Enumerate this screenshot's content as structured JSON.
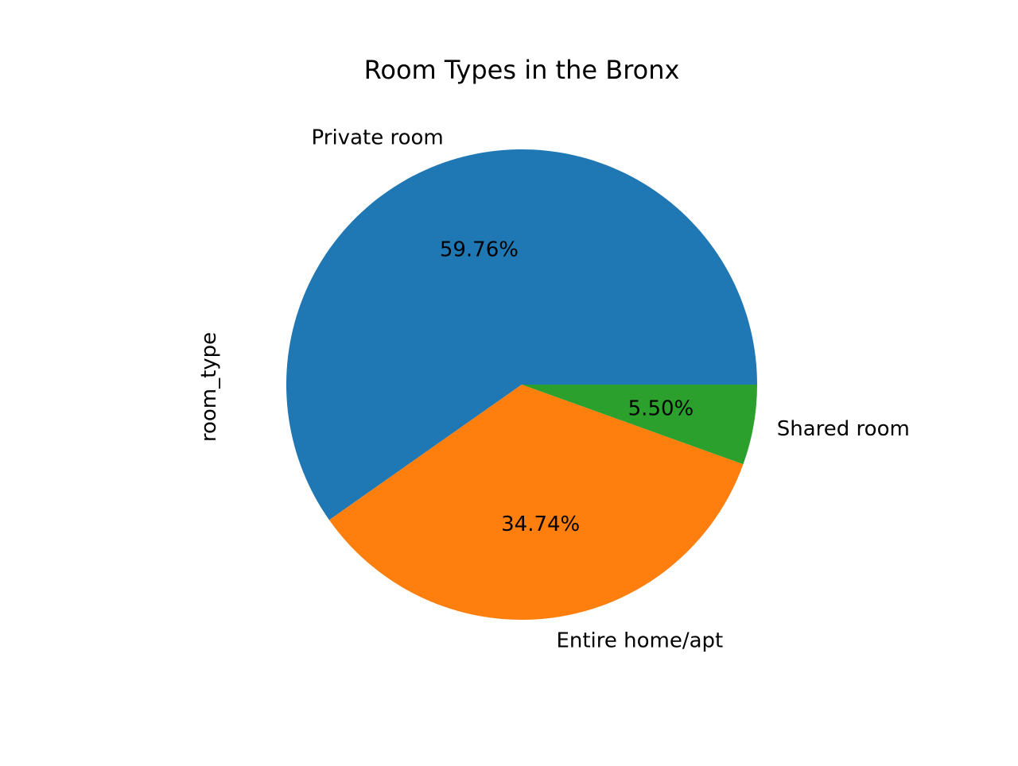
{
  "chart_data": {
    "type": "pie",
    "title": "Room Types in the Bronx",
    "ylabel": "room_type",
    "slices": [
      {
        "label": "Private room",
        "value": 59.76,
        "pct_label": "59.76%",
        "color": "#1f77b4"
      },
      {
        "label": "Entire home/apt",
        "value": 34.74,
        "pct_label": "34.74%",
        "color": "#ff7f0e"
      },
      {
        "label": "Shared room",
        "value": 5.5,
        "pct_label": "5.50%",
        "color": "#2ca02c"
      }
    ],
    "start_angle": 0,
    "direction": "counterclockwise",
    "legend": "none"
  }
}
